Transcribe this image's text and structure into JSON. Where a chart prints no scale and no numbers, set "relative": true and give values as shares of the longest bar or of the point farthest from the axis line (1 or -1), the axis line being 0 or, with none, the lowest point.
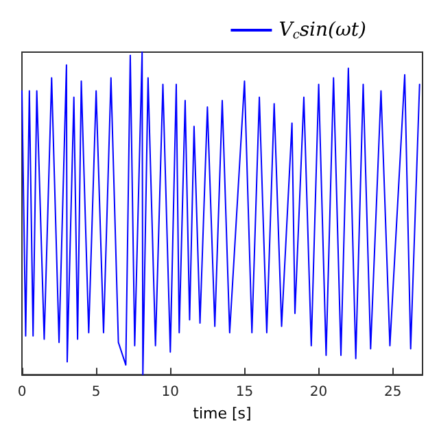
{
  "chart_data": {
    "type": "line",
    "relative": true,
    "xlabel": "time [s]",
    "xlim": [
      0,
      27
    ],
    "xticks": [
      0,
      5,
      10,
      15,
      20,
      25
    ],
    "legend": "top right",
    "grid": false,
    "marker": "none",
    "line_style": "solid",
    "series": [
      {
        "name": "V$_{c}$sin(ωt)",
        "color": "#0000ff",
        "x": [
          0,
          0.25,
          0.5,
          0.75,
          1,
          1.5,
          2,
          2.5,
          3,
          3.05,
          3.5,
          3.75,
          4,
          4.5,
          5,
          5.5,
          6,
          6.5,
          7,
          7.3,
          7.6,
          8.1,
          8.15,
          8.5,
          9,
          9.5,
          10,
          10.4,
          10.6,
          11,
          11.3,
          11.6,
          12,
          12.5,
          13,
          13.5,
          14,
          15,
          15.5,
          16,
          16.5,
          17,
          17.5,
          18.2,
          18.4,
          19,
          19.5,
          20,
          20.5,
          21,
          21.5,
          22,
          22.5,
          23,
          23.5,
          24.2,
          24.8,
          25.8,
          26.2,
          26.8
        ],
        "values": [
          0.88,
          0.12,
          0.88,
          0.12,
          0.88,
          0.11,
          0.92,
          0.1,
          0.96,
          0.04,
          0.86,
          0.11,
          0.91,
          0.13,
          0.88,
          0.13,
          0.92,
          0.1,
          0.03,
          0.99,
          0.09,
          1,
          0,
          0.92,
          0.09,
          0.9,
          0.07,
          0.9,
          0.13,
          0.85,
          0.17,
          0.77,
          0.16,
          0.83,
          0.15,
          0.85,
          0.13,
          0.91,
          0.13,
          0.86,
          0.13,
          0.84,
          0.15,
          0.78,
          0.19,
          0.86,
          0.09,
          0.9,
          0.06,
          0.92,
          0.06,
          0.95,
          0.05,
          0.9,
          0.08,
          0.88,
          0.09,
          0.93,
          0.08,
          0.9
        ]
      }
    ]
  }
}
